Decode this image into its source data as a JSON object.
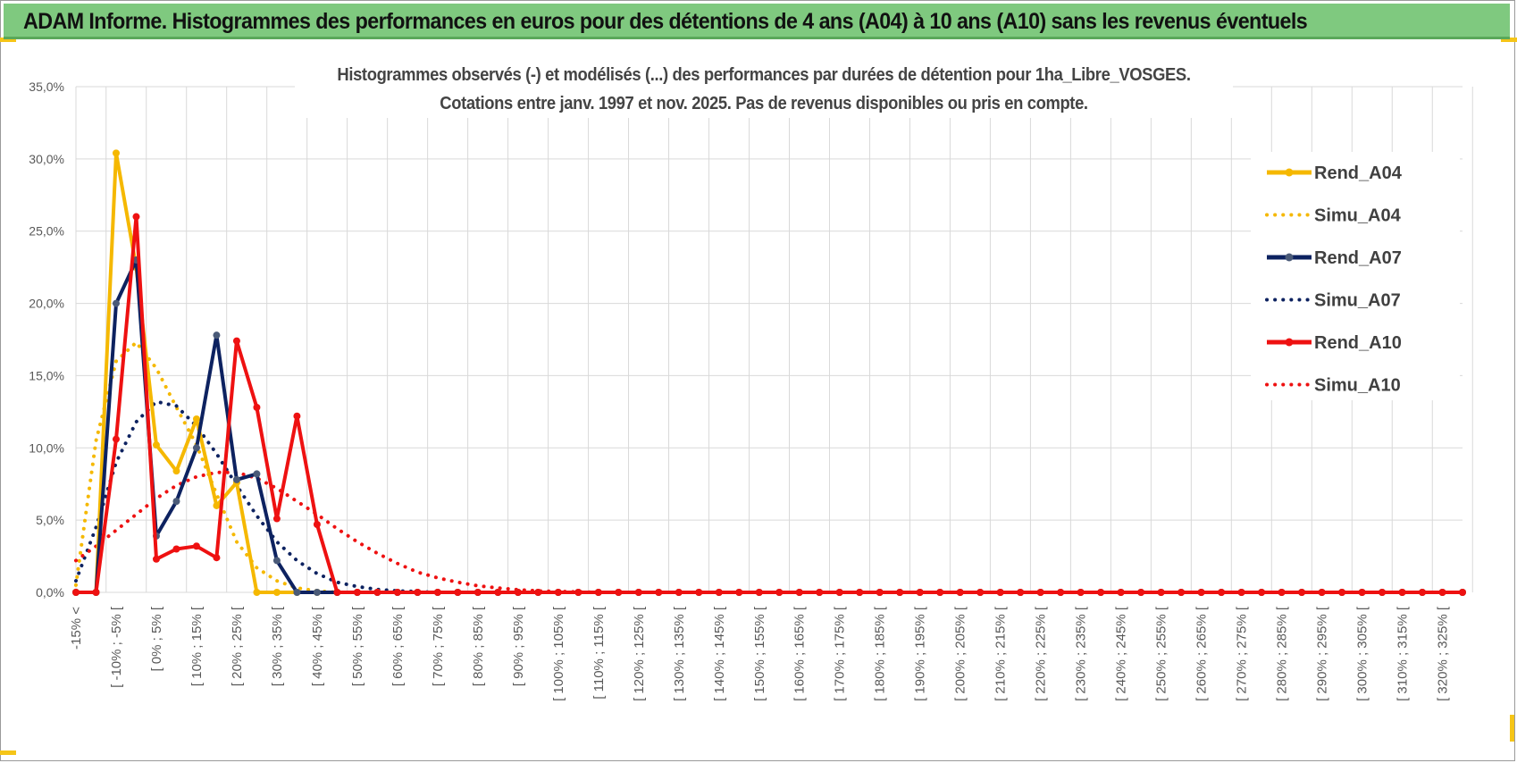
{
  "banner": {
    "title": "ADAM Informe. Histogrammes des performances en euros pour des détentions de 4 ans (A04) à 10 ans (A10) sans les revenus éventuels",
    "background": "#7fc97f"
  },
  "chart_data": {
    "type": "line",
    "title_line1": "Histogrammes observés (-) et modélisés (...) des performances par durées de détention pour 1ha_Libre_VOSGES.",
    "title_line2": "Cotations entre janv. 1997 et nov. 2025. Pas de revenus disponibles ou pris en compte.",
    "ylim": [
      0,
      35
    ],
    "yticks": [
      "0,0%",
      "5,0%",
      "10,0%",
      "15,0%",
      "20,0%",
      "25,0%",
      "30,0%",
      "35,0%"
    ],
    "x_tick_labels": [
      "-15% <",
      "[ -10% ; -5% [",
      "[ 0% ; 5% [",
      "[ 10% ; 15% [",
      "[ 20% ; 25% [",
      "[ 30% ; 35% [",
      "[ 40% ; 45% [",
      "[ 50% ; 55% [",
      "[ 60% ; 65% [",
      "[ 70% ; 75% [",
      "[ 80% ; 85% [",
      "[ 90% ; 95% [",
      "[ 100% ; 105% [",
      "[ 110% ; 115% [",
      "[ 120% ; 125% [",
      "[ 130% ; 135% [",
      "[ 140% ; 145% [",
      "[ 150% ; 155% [",
      "[ 160% ; 165% [",
      "[ 170% ; 175% [",
      "[ 180% ; 185% [",
      "[ 190% ; 195% [",
      "[ 200% ; 205% [",
      "[ 210% ; 215% [",
      "[ 220% ; 225% [",
      "[ 230% ; 235% [",
      "[ 240% ; 245% [",
      "[ 250% ; 255% [",
      "[ 260% ; 265% [",
      "[ 270% ; 275% [",
      "[ 280% ; 285% [",
      "[ 290% ; 295% [",
      "[ 300% ; 305% [",
      "[ 310% ; 315% [",
      "[ 320% ; 325% ["
    ],
    "n_categories": 70,
    "grid": true,
    "legend_position": "right",
    "series": [
      {
        "name": "Rend_A04",
        "style": "solid",
        "color": "#f5b800",
        "values": [
          0,
          0,
          30.4,
          22.5,
          10.2,
          8.4,
          12.0,
          6.0,
          7.6,
          0,
          0,
          0,
          0,
          0,
          0,
          0,
          0,
          0,
          0,
          0,
          0,
          0,
          0,
          0,
          0,
          0,
          0,
          0,
          0,
          0,
          0,
          0,
          0,
          0,
          0,
          0,
          0,
          0,
          0,
          0,
          0,
          0,
          0,
          0,
          0,
          0,
          0,
          0,
          0,
          0,
          0,
          0,
          0,
          0,
          0,
          0,
          0,
          0,
          0,
          0,
          0,
          0,
          0,
          0,
          0,
          0,
          0,
          0,
          0,
          0
        ]
      },
      {
        "name": "Simu_A04",
        "style": "dotted",
        "color": "#f5b800",
        "values": [
          0.5,
          10.5,
          16.0,
          17.3,
          15.5,
          12.8,
          10.2,
          6.8,
          3.5,
          1.7,
          0.8,
          0.3,
          0.1,
          0,
          0,
          0,
          0,
          0,
          0,
          0,
          0,
          0,
          0,
          0,
          0,
          0,
          0,
          0,
          0,
          0,
          0,
          0,
          0,
          0,
          0,
          0,
          0,
          0,
          0,
          0,
          0,
          0,
          0,
          0,
          0,
          0,
          0,
          0,
          0,
          0,
          0,
          0,
          0,
          0,
          0,
          0,
          0,
          0,
          0,
          0,
          0,
          0,
          0,
          0,
          0,
          0,
          0,
          0,
          0,
          0
        ]
      },
      {
        "name": "Rend_A07",
        "style": "solid",
        "color": "#0d2260",
        "values": [
          0,
          0,
          20.0,
          23.0,
          3.9,
          6.3,
          10.0,
          17.8,
          7.8,
          8.2,
          2.2,
          0,
          0,
          0,
          0,
          0,
          0,
          0,
          0,
          0,
          0,
          0,
          0,
          0,
          0,
          0,
          0,
          0,
          0,
          0,
          0,
          0,
          0,
          0,
          0,
          0,
          0,
          0,
          0,
          0,
          0,
          0,
          0,
          0,
          0,
          0,
          0,
          0,
          0,
          0,
          0,
          0,
          0,
          0,
          0,
          0,
          0,
          0,
          0,
          0,
          0,
          0,
          0,
          0,
          0,
          0,
          0,
          0,
          0,
          0
        ]
      },
      {
        "name": "Simu_A07",
        "style": "dotted",
        "color": "#0d2260",
        "values": [
          0.8,
          4.5,
          9.0,
          11.8,
          13.2,
          12.9,
          11.5,
          9.6,
          7.4,
          5.3,
          3.5,
          2.2,
          1.3,
          0.7,
          0.4,
          0.2,
          0.1,
          0.05,
          0,
          0,
          0,
          0,
          0,
          0,
          0,
          0,
          0,
          0,
          0,
          0,
          0,
          0,
          0,
          0,
          0,
          0,
          0,
          0,
          0,
          0,
          0,
          0,
          0,
          0,
          0,
          0,
          0,
          0,
          0,
          0,
          0,
          0,
          0,
          0,
          0,
          0,
          0,
          0,
          0,
          0,
          0,
          0,
          0,
          0,
          0,
          0,
          0,
          0,
          0,
          0
        ]
      },
      {
        "name": "Rend_A10",
        "style": "solid",
        "color": "#ee1111",
        "values": [
          0,
          0,
          10.6,
          26.0,
          2.3,
          3.0,
          3.2,
          2.4,
          17.4,
          12.8,
          5.1,
          12.2,
          4.7,
          0,
          0,
          0,
          0,
          0,
          0,
          0,
          0,
          0,
          0,
          0,
          0,
          0,
          0,
          0,
          0,
          0,
          0,
          0,
          0,
          0,
          0,
          0,
          0,
          0,
          0,
          0,
          0,
          0,
          0,
          0,
          0,
          0,
          0,
          0,
          0,
          0,
          0,
          0,
          0,
          0,
          0,
          0,
          0,
          0,
          0,
          0,
          0,
          0,
          0,
          0,
          0,
          0,
          0,
          0,
          0,
          0
        ]
      },
      {
        "name": "Simu_A10",
        "style": "dotted",
        "color": "#ee1111",
        "values": [
          2.2,
          3.2,
          4.3,
          5.4,
          6.5,
          7.4,
          8.0,
          8.3,
          8.3,
          7.9,
          7.2,
          6.3,
          5.4,
          4.4,
          3.5,
          2.7,
          2.0,
          1.4,
          1.0,
          0.7,
          0.45,
          0.3,
          0.18,
          0.1,
          0.06,
          0.03,
          0,
          0,
          0,
          0,
          0,
          0,
          0,
          0,
          0,
          0,
          0,
          0,
          0,
          0,
          0,
          0,
          0,
          0,
          0,
          0,
          0,
          0,
          0,
          0,
          0,
          0,
          0,
          0,
          0,
          0,
          0,
          0,
          0,
          0,
          0,
          0,
          0,
          0,
          0,
          0,
          0,
          0,
          0,
          0
        ]
      }
    ]
  }
}
